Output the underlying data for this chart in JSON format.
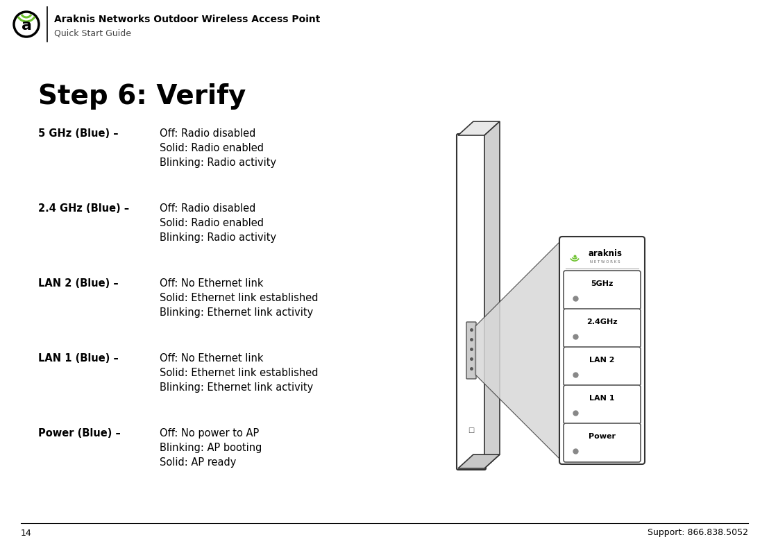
{
  "bg_color": "#ffffff",
  "header_title": "Araknis Networks Outdoor Wireless Access Point",
  "header_subtitle": "Quick Start Guide",
  "step_title": "Step 6: Verify",
  "footer_page": "14",
  "footer_support": "Support: 866.838.5052",
  "led_entries": [
    {
      "label": "5 GHz (Blue) –",
      "lines": [
        "Off: Radio disabled",
        "Solid: Radio enabled",
        "Blinking: Radio activity"
      ]
    },
    {
      "label": "2.4 GHz (Blue) –",
      "lines": [
        "Off: Radio disabled",
        "Solid: Radio enabled",
        "Blinking: Radio activity"
      ]
    },
    {
      "label": "LAN 2 (Blue) –",
      "lines": [
        "Off: No Ethernet link",
        "Solid: Ethernet link established",
        "Blinking: Ethernet link activity"
      ]
    },
    {
      "label": "LAN 1 (Blue) –",
      "lines": [
        "Off: No Ethernet link",
        "Solid: Ethernet link established",
        "Blinking: Ethernet link activity"
      ]
    },
    {
      "label": "Power (Blue) –",
      "lines": [
        "Off: No power to AP",
        "Blinking: AP booting",
        "Solid: AP ready"
      ]
    }
  ],
  "panel_labels": [
    "5GHz",
    "2.4GHz",
    "LAN 2",
    "LAN 1",
    "Power"
  ],
  "panel_border": "#333333",
  "led_dot_color": "#888888",
  "device_outline": "#333333",
  "triangle_fill": "#d8d8d8",
  "araknis_green": "#6dc22e"
}
